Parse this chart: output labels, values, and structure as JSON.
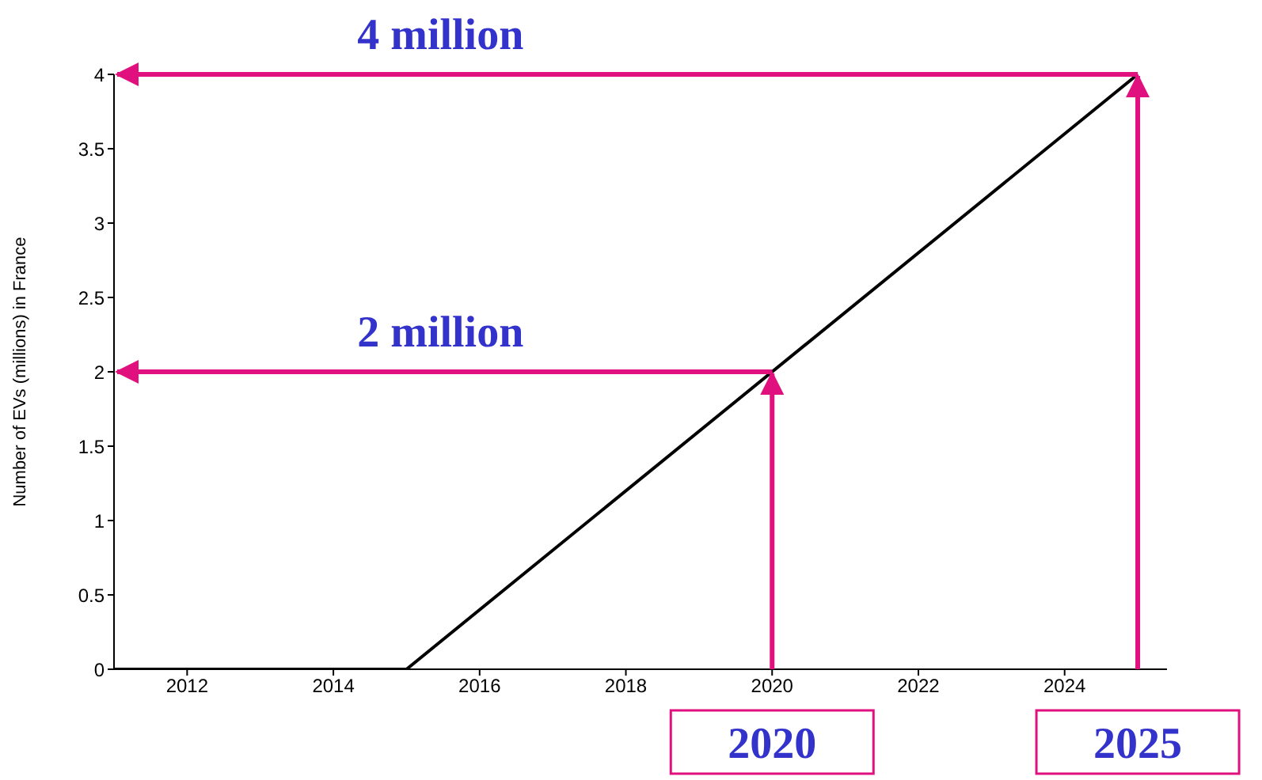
{
  "chart_data": {
    "type": "line",
    "ylabel": "Number of EVs (millions) in France",
    "xlim": [
      2011,
      2025.4
    ],
    "xticks": [
      2012,
      2014,
      2016,
      2018,
      2020,
      2022,
      2024
    ],
    "ylim": [
      0,
      4
    ],
    "yticks": [
      0,
      0.5,
      1,
      1.5,
      2,
      2.5,
      3,
      3.5,
      4
    ],
    "series": [
      {
        "color": "#000000",
        "x": [
          2011,
          2015,
          2025
        ],
        "values": [
          0,
          0,
          4
        ]
      }
    ],
    "marker": "none",
    "line_style": "solid",
    "grid": false,
    "legend": false,
    "ref_lines": [
      {
        "axis": "x",
        "value": 2020,
        "label": "2020",
        "color": "#e0107f"
      },
      {
        "axis": "y",
        "value": 2,
        "label": "2 million",
        "color": "#e0107f"
      },
      {
        "axis": "x",
        "value": 2025,
        "label": "2025",
        "color": "#e0107f"
      },
      {
        "axis": "y",
        "value": 4,
        "label": "4 million",
        "color": "#e0107f"
      }
    ]
  }
}
